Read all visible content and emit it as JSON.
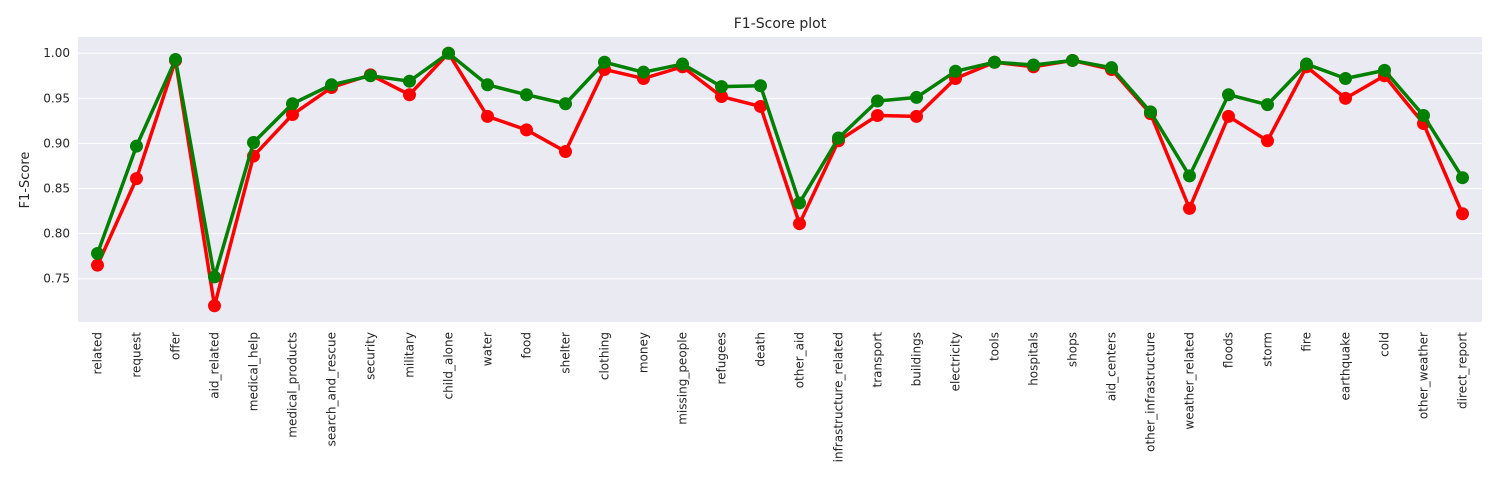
{
  "chart_data": {
    "type": "line",
    "title": "F1-Score  plot",
    "ylabel": "F1-Score",
    "xlabel": "",
    "ylim": [
      0.702,
      1.018
    ],
    "yticks": [
      0.75,
      0.8,
      0.85,
      0.9,
      0.95,
      1.0
    ],
    "yticklabels": [
      "0.75",
      "0.80",
      "0.85",
      "0.90",
      "0.95",
      "1.00"
    ],
    "grid": true,
    "legend": false,
    "categories": [
      "related",
      "request",
      "offer",
      "aid_related",
      "medical_help",
      "medical_products",
      "search_and_rescue",
      "security",
      "military",
      "child_alone",
      "water",
      "food",
      "shelter",
      "clothing",
      "money",
      "missing_people",
      "refugees",
      "death",
      "other_aid",
      "infrastructure_related",
      "transport",
      "buildings",
      "electricity",
      "tools",
      "hospitals",
      "shops",
      "aid_centers",
      "other_infrastructure",
      "weather_related",
      "floods",
      "storm",
      "fire",
      "earthquake",
      "cold",
      "other_weather",
      "direct_report"
    ],
    "series": [
      {
        "color": "#ff0000",
        "values": [
          0.765,
          0.861,
          0.992,
          0.72,
          0.886,
          0.932,
          0.962,
          0.976,
          0.954,
          1.0,
          0.93,
          0.915,
          0.891,
          0.982,
          0.972,
          0.985,
          0.952,
          0.941,
          0.811,
          0.903,
          0.931,
          0.93,
          0.972,
          0.99,
          0.985,
          0.992,
          0.982,
          0.933,
          0.828,
          0.93,
          0.903,
          0.985,
          0.95,
          0.975,
          0.922,
          0.822
        ]
      },
      {
        "color": "#008000",
        "values": [
          0.778,
          0.897,
          0.993,
          0.752,
          0.901,
          0.944,
          0.965,
          0.975,
          0.969,
          1.0,
          0.965,
          0.954,
          0.944,
          0.99,
          0.979,
          0.988,
          0.963,
          0.964,
          0.834,
          0.906,
          0.947,
          0.951,
          0.98,
          0.99,
          0.987,
          0.992,
          0.984,
          0.935,
          0.864,
          0.954,
          0.943,
          0.988,
          0.972,
          0.981,
          0.931,
          0.862
        ]
      }
    ]
  },
  "style": {
    "plot_bg": "#eaeaf2",
    "grid_color": "#ffffff",
    "text_color": "#262626"
  }
}
